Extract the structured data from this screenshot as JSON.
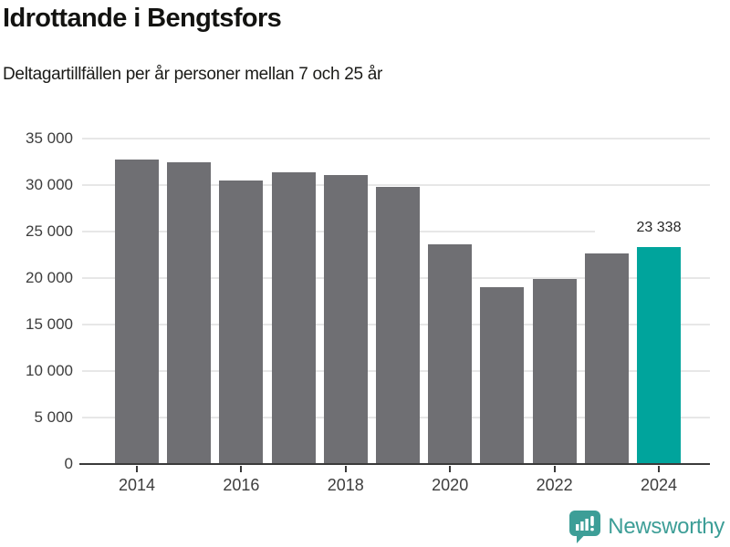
{
  "header": {
    "title": "Idrottande i Bengtsfors",
    "subtitle": "Deltagartillfällen per år personer mellan 7 och 25 år"
  },
  "chart_data": {
    "type": "bar",
    "title": "Idrottande i Bengtsfors",
    "subtitle": "Deltagartillfällen per år personer mellan 7 och 25 år",
    "categories": [
      "2014",
      "2015",
      "2016",
      "2017",
      "2018",
      "2019",
      "2020",
      "2021",
      "2022",
      "2023",
      "2024"
    ],
    "values": [
      32700,
      32500,
      30500,
      31350,
      31050,
      29850,
      23650,
      19050,
      19900,
      22600,
      23338
    ],
    "highlight_index": 10,
    "annotation": {
      "index": 10,
      "text": "23 338"
    },
    "ylim": [
      0,
      35000
    ],
    "yticks": [
      {
        "value": 0,
        "label": "0"
      },
      {
        "value": 5000,
        "label": "5 000"
      },
      {
        "value": 10000,
        "label": "10 000"
      },
      {
        "value": 15000,
        "label": "15 000"
      },
      {
        "value": 20000,
        "label": "20 000"
      },
      {
        "value": 25000,
        "label": "25 000"
      },
      {
        "value": 30000,
        "label": "30 000"
      },
      {
        "value": 35000,
        "label": "35 000"
      }
    ],
    "xticks": [
      {
        "index": 0,
        "label": "2014"
      },
      {
        "index": 2,
        "label": "2016"
      },
      {
        "index": 4,
        "label": "2018"
      },
      {
        "index": 6,
        "label": "2020"
      },
      {
        "index": 8,
        "label": "2022"
      },
      {
        "index": 10,
        "label": "2024"
      }
    ],
    "bar_color": "#6f6f73",
    "highlight_color": "#00a49c",
    "grid": true,
    "legend": "none"
  },
  "footer": {
    "brand": "Newsworthy",
    "brand_color": "#3d9e97",
    "logo_icon": "bar-chart-speech-bubble-icon"
  }
}
